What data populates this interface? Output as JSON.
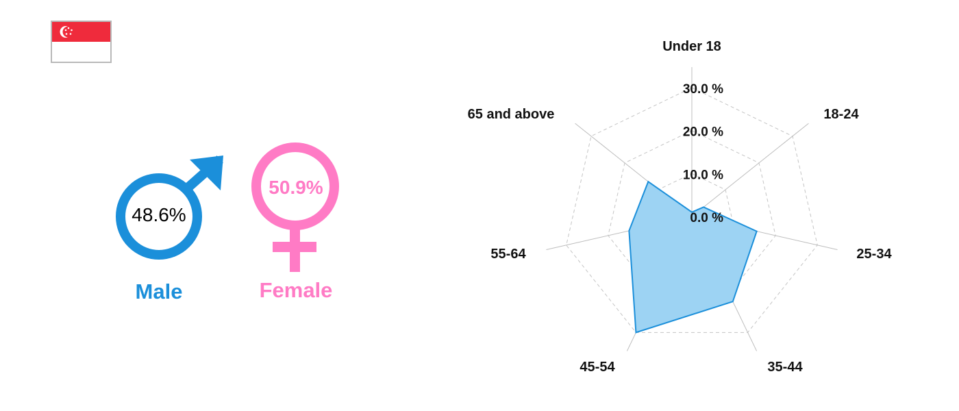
{
  "country": {
    "flag_name": "Singapore",
    "flag_colors": {
      "red": "#EF2B3C",
      "white": "#FFFFFF"
    }
  },
  "gender": {
    "male": {
      "label": "Male",
      "percent": "48.6%",
      "color": "#1B8FDA"
    },
    "female": {
      "label": "Female",
      "percent": "50.9%",
      "color": "#FF7BC5"
    }
  },
  "chart_data": {
    "type": "radar",
    "categories": [
      "Under 18",
      "18-24",
      "25-34",
      "35-44",
      "45-54",
      "55-64",
      "65 and above"
    ],
    "values": [
      1.0,
      3.5,
      15.5,
      22.0,
      30.0,
      15.0,
      13.0
    ],
    "tick_labels": [
      "0.0 %",
      "10.0 %",
      "20.0 %",
      "30.0 %"
    ],
    "range": [
      0,
      30
    ],
    "grid": "dashed polygons",
    "fill_color": "#9DD3F3",
    "line_color": "#1B8FDA"
  }
}
